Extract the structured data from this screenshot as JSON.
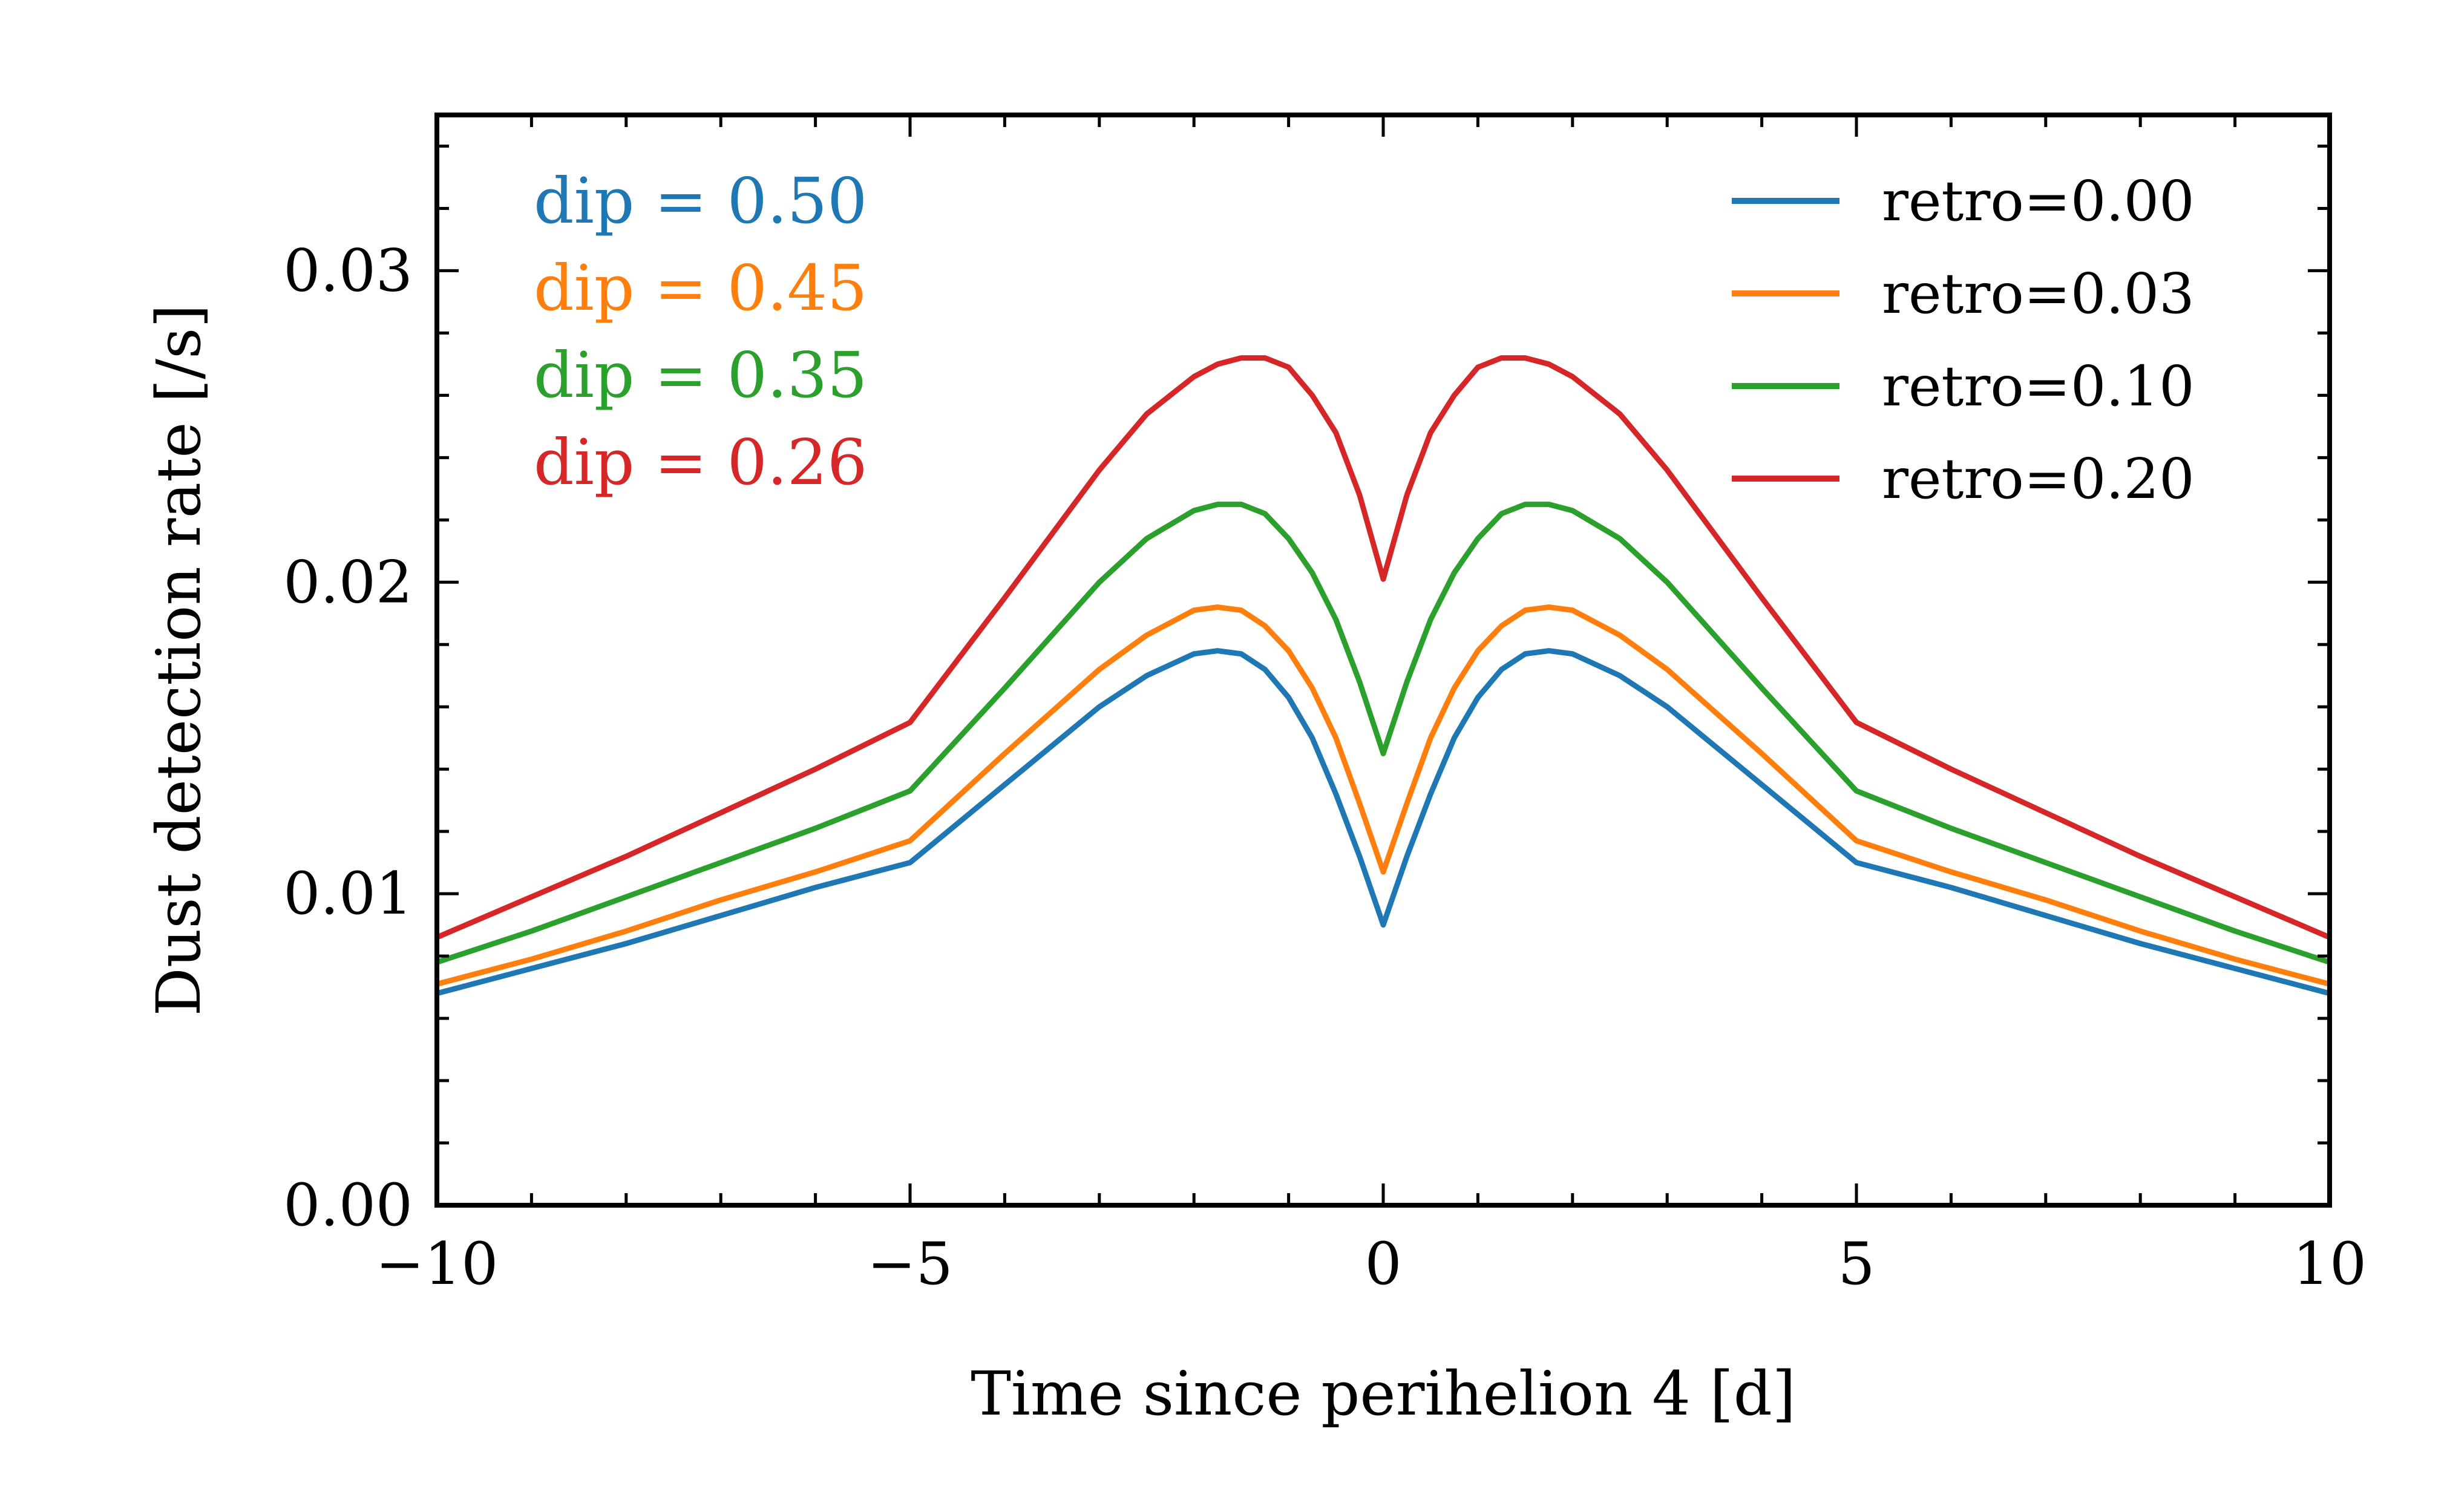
{
  "chart_data": {
    "type": "line",
    "title": "",
    "xlabel": "Time since perihelion 4 [d]",
    "ylabel": "Dust detection rate [/s]",
    "xlim": [
      -10,
      10
    ],
    "ylim": [
      0,
      0.035
    ],
    "xticks": [
      -10,
      -5,
      0,
      5,
      10
    ],
    "xtick_labels": [
      "−10",
      "−5",
      "0",
      "5",
      "10"
    ],
    "yticks": [
      0.0,
      0.01,
      0.02,
      0.03
    ],
    "ytick_labels": [
      "0.00",
      "0.01",
      "0.02",
      "0.03"
    ],
    "grid": false,
    "legend": {
      "placement": "top-right",
      "entries": [
        "retro=0.00",
        "retro=0.03",
        "retro=0.10",
        "retro=0.20"
      ]
    },
    "annotations": [
      {
        "text": "dip = 0.50",
        "color": "#1f77b4"
      },
      {
        "text": "dip = 0.45",
        "color": "#ff7f0e"
      },
      {
        "text": "dip = 0.35",
        "color": "#2ca02c"
      },
      {
        "text": "dip = 0.26",
        "color": "#d62728"
      }
    ],
    "x": [
      -10,
      -9,
      -8,
      -7,
      -6,
      -5,
      -4,
      -3,
      -2.5,
      -2,
      -1.75,
      -1.5,
      -1.25,
      -1,
      -0.75,
      -0.5,
      -0.25,
      0,
      0.25,
      0.5,
      0.75,
      1,
      1.25,
      1.5,
      1.75,
      2,
      2.5,
      3,
      4,
      5,
      6,
      7,
      8,
      9,
      10
    ],
    "series": [
      {
        "name": "retro=0.00",
        "color": "#1f77b4",
        "values": [
          0.0068,
          0.0076,
          0.0084,
          0.0093,
          0.0102,
          0.011,
          0.0135,
          0.016,
          0.017,
          0.0177,
          0.0178,
          0.0177,
          0.0172,
          0.0163,
          0.015,
          0.0132,
          0.0112,
          0.009,
          0.0112,
          0.0132,
          0.015,
          0.0163,
          0.0172,
          0.0177,
          0.0178,
          0.0177,
          0.017,
          0.016,
          0.0135,
          0.011,
          0.0102,
          0.0093,
          0.0084,
          0.0076,
          0.0068
        ]
      },
      {
        "name": "retro=0.03",
        "color": "#ff7f0e",
        "values": [
          0.0071,
          0.0079,
          0.0088,
          0.0098,
          0.0107,
          0.0117,
          0.0145,
          0.0172,
          0.0183,
          0.0191,
          0.0192,
          0.0191,
          0.0186,
          0.0178,
          0.0166,
          0.015,
          0.0129,
          0.0107,
          0.0129,
          0.015,
          0.0166,
          0.0178,
          0.0186,
          0.0191,
          0.0192,
          0.0191,
          0.0183,
          0.0172,
          0.0145,
          0.0117,
          0.0107,
          0.0098,
          0.0088,
          0.0079,
          0.0071
        ]
      },
      {
        "name": "retro=0.10",
        "color": "#2ca02c",
        "values": [
          0.0078,
          0.0088,
          0.0099,
          0.011,
          0.0121,
          0.0133,
          0.0166,
          0.02,
          0.0214,
          0.0223,
          0.0225,
          0.0225,
          0.0222,
          0.0214,
          0.0203,
          0.0188,
          0.0168,
          0.0145,
          0.0168,
          0.0188,
          0.0203,
          0.0214,
          0.0222,
          0.0225,
          0.0225,
          0.0223,
          0.0214,
          0.02,
          0.0166,
          0.0133,
          0.0121,
          0.011,
          0.0099,
          0.0088,
          0.0078
        ]
      },
      {
        "name": "retro=0.20",
        "color": "#d62728",
        "values": [
          0.0086,
          0.0099,
          0.0112,
          0.0126,
          0.014,
          0.0155,
          0.0195,
          0.0236,
          0.0254,
          0.0266,
          0.027,
          0.0272,
          0.0272,
          0.0269,
          0.026,
          0.0248,
          0.0228,
          0.0201,
          0.0228,
          0.0248,
          0.026,
          0.0269,
          0.0272,
          0.0272,
          0.027,
          0.0266,
          0.0254,
          0.0236,
          0.0195,
          0.0155,
          0.014,
          0.0126,
          0.0112,
          0.0099,
          0.0086
        ]
      }
    ]
  }
}
